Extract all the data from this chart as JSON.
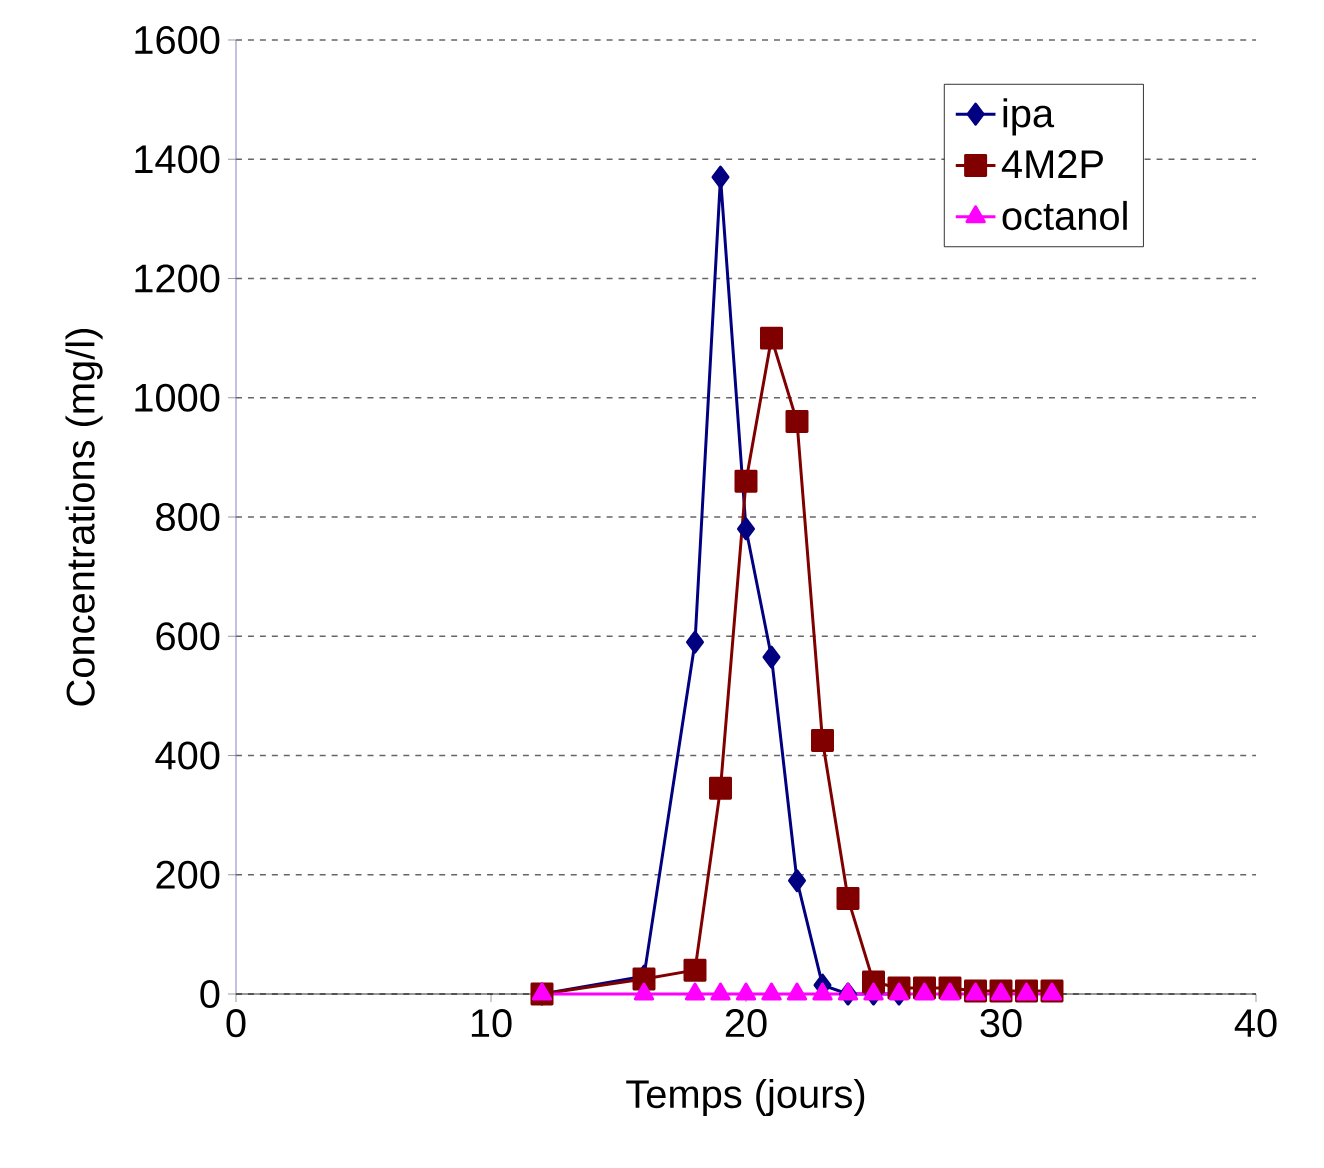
{
  "chart_data": {
    "type": "line",
    "xlabel": "Temps (jours)",
    "ylabel": "Concentrations (mg/l)",
    "xlim": [
      0,
      40
    ],
    "xticks": [
      0,
      10,
      20,
      30,
      40
    ],
    "ylim": [
      0,
      1600
    ],
    "yticks": [
      0,
      200,
      400,
      600,
      800,
      1000,
      1200,
      1400,
      1600
    ],
    "grid": "y",
    "legend": "top right",
    "line_style": "solid",
    "series": [
      {
        "name": "ipa",
        "color": "#000080",
        "marker": "diamond",
        "x": [
          12,
          16,
          18,
          19,
          20,
          21,
          22,
          23,
          24,
          25,
          26
        ],
        "values": [
          0,
          30,
          590,
          1370,
          780,
          565,
          190,
          15,
          0,
          0,
          0
        ]
      },
      {
        "name": "4M2P",
        "color": "#800000",
        "marker": "square",
        "x": [
          12,
          16,
          18,
          19,
          20,
          21,
          22,
          23,
          24,
          25,
          26,
          27,
          28,
          29,
          30,
          31,
          32
        ],
        "values": [
          0,
          25,
          40,
          345,
          860,
          1100,
          960,
          425,
          160,
          20,
          10,
          10,
          10,
          5,
          5,
          5,
          5
        ]
      },
      {
        "name": "octanol",
        "color": "#ff00ff",
        "marker": "triangle",
        "x": [
          12,
          16,
          18,
          19,
          20,
          21,
          22,
          23,
          24,
          25,
          26,
          27,
          28,
          29,
          30,
          31,
          32
        ],
        "values": [
          0,
          0,
          0,
          0,
          0,
          0,
          0,
          0,
          0,
          0,
          0,
          0,
          0,
          0,
          0,
          0,
          0
        ]
      }
    ]
  }
}
